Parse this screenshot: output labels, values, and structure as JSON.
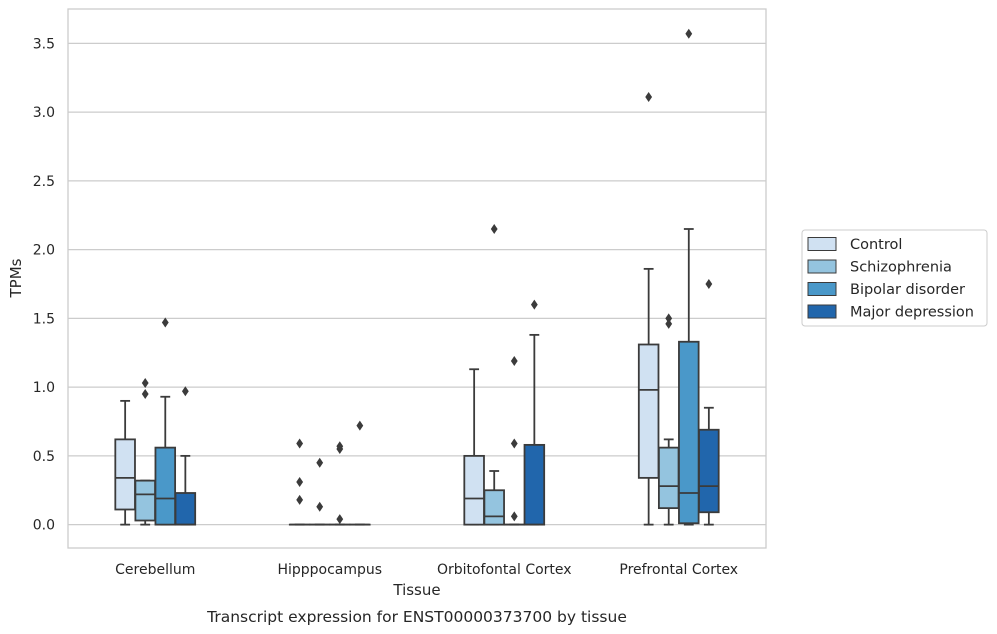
{
  "chart_data": {
    "type": "box",
    "title": "",
    "caption": "Transcript expression for ENST00000373700 by tissue",
    "xlabel": "Tissue",
    "ylabel": "TPMs",
    "ylim": [
      -0.17,
      3.75
    ],
    "yticks": [
      0.0,
      0.5,
      1.0,
      1.5,
      2.0,
      2.5,
      3.0,
      3.5
    ],
    "ytick_labels": [
      "0.0",
      "0.5",
      "1.0",
      "1.5",
      "2.0",
      "2.5",
      "3.0",
      "3.5"
    ],
    "grid": "horizontal",
    "legend_position": "outside-right",
    "categories": [
      "Cerebellum",
      "Hipppocampus",
      "Orbitofontal Cortex",
      "Prefrontal Cortex"
    ],
    "series": [
      {
        "name": "Control",
        "color": "#d0e1f2",
        "boxes": [
          {
            "whislo": 0.0,
            "q1": 0.11,
            "median": 0.34,
            "q3": 0.62,
            "whishi": 0.9,
            "fliers": []
          },
          {
            "whislo": 0.0,
            "q1": 0.0,
            "median": 0.0,
            "q3": 0.0,
            "whishi": 0.0,
            "fliers": [
              0.59,
              0.31,
              0.18
            ]
          },
          {
            "whislo": 0.0,
            "q1": 0.0,
            "median": 0.19,
            "q3": 0.5,
            "whishi": 1.13,
            "fliers": []
          },
          {
            "whislo": 0.0,
            "q1": 0.34,
            "median": 0.98,
            "q3": 1.31,
            "whishi": 1.86,
            "fliers": [
              3.11
            ]
          }
        ]
      },
      {
        "name": "Schizophrenia",
        "color": "#94c4df",
        "boxes": [
          {
            "whislo": 0.0,
            "q1": 0.03,
            "median": 0.22,
            "q3": 0.32,
            "whishi": 0.32,
            "fliers": [
              1.03,
              0.95
            ]
          },
          {
            "whislo": 0.0,
            "q1": 0.0,
            "median": 0.0,
            "q3": 0.0,
            "whishi": 0.0,
            "fliers": [
              0.45,
              0.13
            ]
          },
          {
            "whislo": 0.0,
            "q1": 0.0,
            "median": 0.06,
            "q3": 0.25,
            "whishi": 0.39,
            "fliers": [
              2.15
            ]
          },
          {
            "whislo": 0.0,
            "q1": 0.12,
            "median": 0.28,
            "q3": 0.56,
            "whishi": 0.62,
            "fliers": [
              1.5,
              1.46
            ]
          }
        ]
      },
      {
        "name": "Bipolar disorder",
        "color": "#4a98c9",
        "boxes": [
          {
            "whislo": 0.0,
            "q1": 0.0,
            "median": 0.19,
            "q3": 0.56,
            "whishi": 0.93,
            "fliers": [
              1.47
            ]
          },
          {
            "whislo": 0.0,
            "q1": 0.0,
            "median": 0.0,
            "q3": 0.0,
            "whishi": 0.0,
            "fliers": [
              0.57,
              0.55,
              0.04
            ]
          },
          {
            "whislo": 0.0,
            "q1": 0.0,
            "median": 0.0,
            "q3": 0.0,
            "whishi": 0.0,
            "fliers": [
              1.19,
              0.59,
              0.06
            ]
          },
          {
            "whislo": 0.0,
            "q1": 0.01,
            "median": 0.23,
            "q3": 1.33,
            "whishi": 2.15,
            "fliers": [
              3.57
            ]
          }
        ]
      },
      {
        "name": "Major depression",
        "color": "#2166ac",
        "boxes": [
          {
            "whislo": 0.0,
            "q1": 0.0,
            "median": 0.0,
            "q3": 0.23,
            "whishi": 0.5,
            "fliers": [
              0.97
            ]
          },
          {
            "whislo": 0.0,
            "q1": 0.0,
            "median": 0.0,
            "q3": 0.0,
            "whishi": 0.0,
            "fliers": [
              0.72
            ]
          },
          {
            "whislo": 0.0,
            "q1": 0.0,
            "median": 0.0,
            "q3": 0.58,
            "whishi": 1.38,
            "fliers": [
              1.6
            ]
          },
          {
            "whislo": 0.0,
            "q1": 0.09,
            "median": 0.28,
            "q3": 0.69,
            "whishi": 0.85,
            "fliers": [
              1.75
            ]
          }
        ]
      }
    ]
  }
}
